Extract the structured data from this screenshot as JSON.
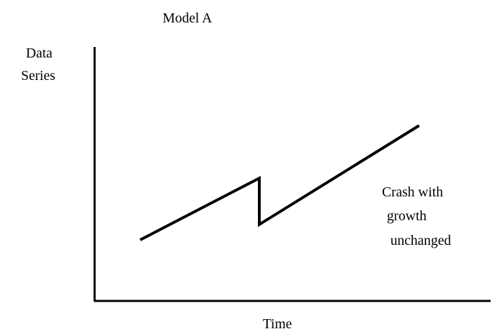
{
  "title": "Model A",
  "y_axis_label": [
    "Data",
    "Series"
  ],
  "x_axis_label": "Time",
  "annotation": [
    "Crash with",
    "growth",
    "unchanged"
  ]
}
